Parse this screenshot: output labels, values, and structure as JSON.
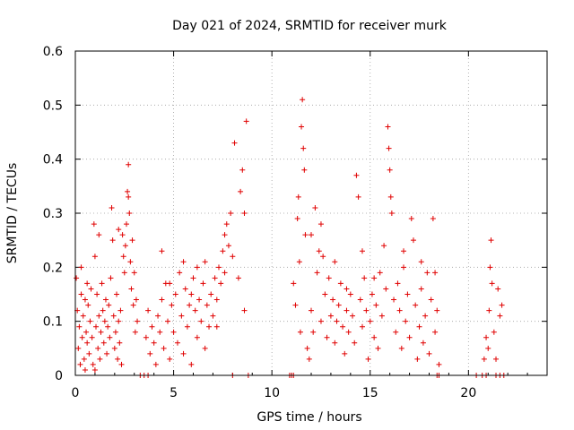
{
  "chart_data": {
    "type": "scatter",
    "title": "Day 021 of 2024, SRMTID for receiver murk",
    "xlabel": "GPS time / hours",
    "ylabel": "SRMTID / TECUs",
    "xlim": [
      0,
      24
    ],
    "ylim": [
      0,
      0.6
    ],
    "xticks": [
      0,
      5,
      10,
      15,
      20
    ],
    "yticks": [
      0,
      0.1,
      0.2,
      0.3,
      0.4,
      0.5,
      0.6
    ],
    "xtick_labels": [
      "0",
      "5",
      "10",
      "15",
      "20"
    ],
    "ytick_labels": [
      "0",
      "0.1",
      "0.2",
      "0.3",
      "0.4",
      "0.5",
      "0.6"
    ],
    "grid": true,
    "marker": "+",
    "color": "#e00000",
    "series": [
      {
        "name": "SRMTID",
        "points": [
          [
            0.05,
            0.18
          ],
          [
            0.1,
            0.12
          ],
          [
            0.15,
            0.05
          ],
          [
            0.2,
            0.09
          ],
          [
            0.25,
            0.02
          ],
          [
            0.3,
            0.15
          ],
          [
            0.35,
            0.07
          ],
          [
            0.4,
            0.11
          ],
          [
            0.45,
            0.03
          ],
          [
            0.5,
            0.14
          ],
          [
            0.55,
            0.08
          ],
          [
            0.6,
            0.06
          ],
          [
            0.65,
            0.13
          ],
          [
            0.7,
            0.04
          ],
          [
            0.75,
            0.1
          ],
          [
            0.8,
            0.16
          ],
          [
            0.85,
            0.07
          ],
          [
            0.9,
            0.02
          ],
          [
            0.95,
            0.28
          ],
          [
            1.0,
            0.22
          ],
          [
            1.05,
            0.09
          ],
          [
            1.1,
            0.15
          ],
          [
            1.15,
            0.05
          ],
          [
            1.2,
            0.11
          ],
          [
            1.25,
            0.03
          ],
          [
            1.3,
            0.08
          ],
          [
            1.35,
            0.17
          ],
          [
            1.4,
            0.12
          ],
          [
            1.45,
            0.06
          ],
          [
            1.5,
            0.1
          ],
          [
            1.55,
            0.14
          ],
          [
            1.6,
            0.04
          ],
          [
            1.65,
            0.09
          ],
          [
            1.7,
            0.13
          ],
          [
            1.75,
            0.07
          ],
          [
            1.8,
            0.18
          ],
          [
            1.85,
            0.31
          ],
          [
            1.9,
            0.25
          ],
          [
            1.95,
            0.11
          ],
          [
            2.0,
            0.05
          ],
          [
            2.05,
            0.08
          ],
          [
            2.1,
            0.15
          ],
          [
            2.15,
            0.03
          ],
          [
            2.2,
            0.1
          ],
          [
            2.25,
            0.06
          ],
          [
            2.3,
            0.12
          ],
          [
            2.35,
            0.02
          ],
          [
            2.4,
            0.26
          ],
          [
            2.45,
            0.22
          ],
          [
            2.5,
            0.19
          ],
          [
            2.55,
            0.24
          ],
          [
            2.6,
            0.28
          ],
          [
            2.65,
            0.34
          ],
          [
            2.7,
            0.39
          ],
          [
            2.75,
            0.3
          ],
          [
            2.8,
            0.21
          ],
          [
            2.85,
            0.16
          ],
          [
            2.9,
            0.25
          ],
          [
            2.95,
            0.13
          ],
          [
            3.0,
            0.19
          ],
          [
            3.05,
            0.08
          ],
          [
            3.1,
            0.14
          ],
          [
            3.15,
            0.1
          ],
          [
            0.3,
            0.2
          ],
          [
            0.6,
            0.17
          ],
          [
            1.2,
            0.26
          ],
          [
            2.2,
            0.27
          ],
          [
            2.7,
            0.33
          ],
          [
            0.5,
            0.01
          ],
          [
            1.0,
            0.01
          ],
          [
            3.3,
            0.0
          ],
          [
            3.5,
            0.0
          ],
          [
            3.7,
            0.0
          ],
          [
            3.6,
            0.07
          ],
          [
            3.7,
            0.12
          ],
          [
            3.8,
            0.04
          ],
          [
            3.9,
            0.09
          ],
          [
            4.0,
            0.06
          ],
          [
            4.1,
            0.02
          ],
          [
            4.2,
            0.11
          ],
          [
            4.3,
            0.08
          ],
          [
            4.4,
            0.14
          ],
          [
            4.5,
            0.05
          ],
          [
            4.6,
            0.17
          ],
          [
            4.7,
            0.1
          ],
          [
            4.8,
            0.03
          ],
          [
            4.9,
            0.13
          ],
          [
            5.0,
            0.08
          ],
          [
            5.1,
            0.15
          ],
          [
            5.2,
            0.06
          ],
          [
            5.3,
            0.19
          ],
          [
            5.4,
            0.11
          ],
          [
            5.5,
            0.04
          ],
          [
            5.6,
            0.16
          ],
          [
            5.7,
            0.09
          ],
          [
            5.8,
            0.13
          ],
          [
            5.9,
            0.02
          ],
          [
            6.0,
            0.18
          ],
          [
            6.1,
            0.12
          ],
          [
            6.2,
            0.07
          ],
          [
            6.3,
            0.14
          ],
          [
            6.4,
            0.1
          ],
          [
            6.5,
            0.17
          ],
          [
            6.6,
            0.05
          ],
          [
            6.7,
            0.13
          ],
          [
            6.8,
            0.09
          ],
          [
            6.9,
            0.15
          ],
          [
            7.0,
            0.11
          ],
          [
            7.1,
            0.18
          ],
          [
            7.2,
            0.14
          ],
          [
            7.3,
            0.2
          ],
          [
            7.4,
            0.17
          ],
          [
            7.5,
            0.23
          ],
          [
            7.6,
            0.19
          ],
          [
            7.7,
            0.28
          ],
          [
            7.8,
            0.24
          ],
          [
            7.9,
            0.3
          ],
          [
            8.0,
            0.22
          ],
          [
            8.1,
            0.43
          ],
          [
            8.3,
            0.18
          ],
          [
            8.4,
            0.34
          ],
          [
            8.5,
            0.38
          ],
          [
            8.6,
            0.3
          ],
          [
            8.7,
            0.47
          ],
          [
            8.6,
            0.12
          ],
          [
            4.4,
            0.23
          ],
          [
            5.5,
            0.21
          ],
          [
            6.2,
            0.2
          ],
          [
            7.6,
            0.26
          ],
          [
            4.8,
            0.17
          ],
          [
            5.9,
            0.15
          ],
          [
            6.6,
            0.21
          ],
          [
            7.2,
            0.09
          ],
          [
            8.0,
            0.0
          ],
          [
            8.8,
            0.0
          ],
          [
            10.9,
            0.0
          ],
          [
            11.0,
            0.0
          ],
          [
            11.1,
            0.0
          ],
          [
            11.1,
            0.17
          ],
          [
            11.2,
            0.13
          ],
          [
            11.3,
            0.29
          ],
          [
            11.35,
            0.33
          ],
          [
            11.4,
            0.21
          ],
          [
            11.45,
            0.08
          ],
          [
            11.5,
            0.46
          ],
          [
            11.55,
            0.51
          ],
          [
            11.6,
            0.42
          ],
          [
            11.65,
            0.38
          ],
          [
            11.7,
            0.26
          ],
          [
            11.8,
            0.05
          ],
          [
            11.9,
            0.03
          ],
          [
            12.0,
            0.12
          ],
          [
            12.1,
            0.08
          ],
          [
            12.2,
            0.31
          ],
          [
            12.3,
            0.19
          ],
          [
            12.4,
            0.23
          ],
          [
            12.5,
            0.28
          ],
          [
            12.6,
            0.22
          ],
          [
            12.7,
            0.15
          ],
          [
            12.8,
            0.07
          ],
          [
            12.9,
            0.18
          ],
          [
            13.0,
            0.11
          ],
          [
            13.1,
            0.14
          ],
          [
            13.2,
            0.06
          ],
          [
            13.3,
            0.1
          ],
          [
            13.4,
            0.13
          ],
          [
            13.5,
            0.17
          ],
          [
            13.6,
            0.09
          ],
          [
            13.7,
            0.04
          ],
          [
            13.8,
            0.12
          ],
          [
            13.9,
            0.08
          ],
          [
            14.0,
            0.15
          ],
          [
            14.1,
            0.11
          ],
          [
            14.2,
            0.06
          ],
          [
            14.3,
            0.37
          ],
          [
            14.4,
            0.33
          ],
          [
            14.5,
            0.14
          ],
          [
            14.6,
            0.09
          ],
          [
            14.7,
            0.18
          ],
          [
            14.8,
            0.12
          ],
          [
            14.9,
            0.03
          ],
          [
            15.0,
            0.1
          ],
          [
            15.1,
            0.15
          ],
          [
            15.2,
            0.07
          ],
          [
            15.3,
            0.13
          ],
          [
            15.4,
            0.05
          ],
          [
            15.5,
            0.19
          ],
          [
            15.6,
            0.11
          ],
          [
            15.7,
            0.24
          ],
          [
            15.8,
            0.16
          ],
          [
            15.9,
            0.46
          ],
          [
            15.95,
            0.42
          ],
          [
            16.0,
            0.38
          ],
          [
            16.05,
            0.33
          ],
          [
            16.1,
            0.3
          ],
          [
            16.2,
            0.14
          ],
          [
            16.3,
            0.08
          ],
          [
            16.4,
            0.17
          ],
          [
            16.5,
            0.12
          ],
          [
            16.6,
            0.05
          ],
          [
            16.7,
            0.2
          ],
          [
            16.8,
            0.1
          ],
          [
            16.9,
            0.15
          ],
          [
            17.0,
            0.07
          ],
          [
            17.1,
            0.29
          ],
          [
            17.2,
            0.25
          ],
          [
            17.3,
            0.13
          ],
          [
            17.4,
            0.03
          ],
          [
            17.5,
            0.09
          ],
          [
            17.6,
            0.16
          ],
          [
            17.7,
            0.06
          ],
          [
            17.8,
            0.11
          ],
          [
            17.9,
            0.19
          ],
          [
            18.0,
            0.04
          ],
          [
            18.1,
            0.14
          ],
          [
            18.2,
            0.29
          ],
          [
            18.3,
            0.08
          ],
          [
            18.4,
            0.12
          ],
          [
            18.5,
            0.02
          ],
          [
            12.0,
            0.26
          ],
          [
            13.2,
            0.21
          ],
          [
            14.6,
            0.23
          ],
          [
            16.7,
            0.23
          ],
          [
            17.6,
            0.21
          ],
          [
            18.3,
            0.19
          ],
          [
            12.5,
            0.1
          ],
          [
            13.8,
            0.16
          ],
          [
            15.2,
            0.18
          ],
          [
            18.4,
            0.0
          ],
          [
            18.5,
            0.0
          ],
          [
            20.4,
            0.0
          ],
          [
            20.7,
            0.0
          ],
          [
            20.9,
            0.0
          ],
          [
            20.8,
            0.03
          ],
          [
            20.9,
            0.07
          ],
          [
            21.0,
            0.05
          ],
          [
            21.05,
            0.12
          ],
          [
            21.1,
            0.2
          ],
          [
            21.15,
            0.25
          ],
          [
            21.2,
            0.17
          ],
          [
            21.3,
            0.08
          ],
          [
            21.4,
            0.03
          ],
          [
            21.5,
            0.16
          ],
          [
            21.6,
            0.11
          ],
          [
            21.7,
            0.13
          ],
          [
            21.4,
            0.0
          ],
          [
            21.6,
            0.0
          ],
          [
            21.8,
            0.0
          ]
        ]
      }
    ]
  }
}
